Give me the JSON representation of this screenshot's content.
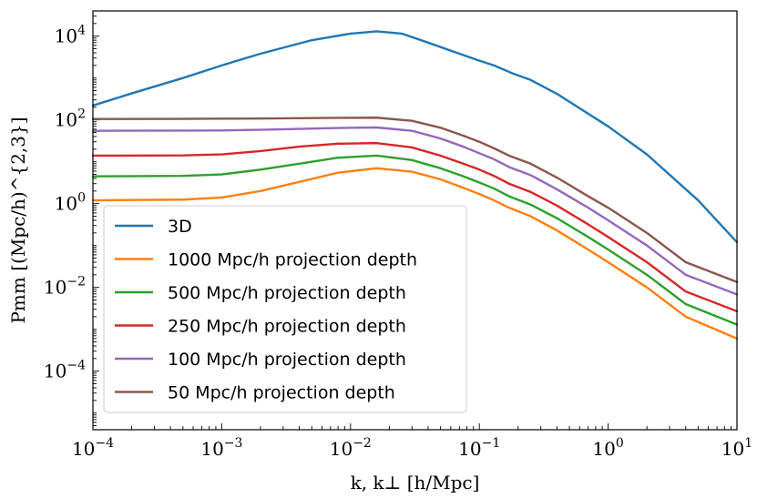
{
  "chart_data": {
    "type": "line",
    "xscale": "log",
    "yscale": "log",
    "xlim": [
      0.0001,
      10
    ],
    "ylim": [
      4e-06,
      40000
    ],
    "xlabel": "k, k⊥ [h/Mpc]",
    "ylabel": "Pmm [(Mpc/h)^{2,3}]",
    "legend_position": "lower-left",
    "x_ticks": [
      {
        "value": 0.0001,
        "base": "10",
        "exp": "−4"
      },
      {
        "value": 0.001,
        "base": "10",
        "exp": "−3"
      },
      {
        "value": 0.01,
        "base": "10",
        "exp": "−2"
      },
      {
        "value": 0.1,
        "base": "10",
        "exp": "−1"
      },
      {
        "value": 1,
        "base": "10",
        "exp": "0"
      },
      {
        "value": 10,
        "base": "10",
        "exp": "1"
      }
    ],
    "y_ticks": [
      {
        "value": 0.0001,
        "base": "10",
        "exp": "−4"
      },
      {
        "value": 0.01,
        "base": "10",
        "exp": "−2"
      },
      {
        "value": 1,
        "base": "10",
        "exp": "0"
      },
      {
        "value": 100,
        "base": "10",
        "exp": "2"
      },
      {
        "value": 10000,
        "base": "10",
        "exp": "4"
      }
    ],
    "series": [
      {
        "name": "3D",
        "color": "#1f77b4",
        "points": [
          [
            0.0001,
            220
          ],
          [
            0.0002,
            430
          ],
          [
            0.0005,
            1000
          ],
          [
            0.001,
            2000
          ],
          [
            0.002,
            3800
          ],
          [
            0.005,
            8000
          ],
          [
            0.01,
            11500
          ],
          [
            0.016,
            13000
          ],
          [
            0.025,
            11500
          ],
          [
            0.04,
            7000
          ],
          [
            0.06,
            4500
          ],
          [
            0.08,
            3300
          ],
          [
            0.1,
            2600
          ],
          [
            0.13,
            2000
          ],
          [
            0.18,
            1300
          ],
          [
            0.25,
            900
          ],
          [
            0.4,
            420
          ],
          [
            0.6,
            190
          ],
          [
            1,
            70
          ],
          [
            2,
            15
          ],
          [
            5,
            1.2
          ],
          [
            10,
            0.12
          ]
        ]
      },
      {
        "name": "1000 Mpc/h projection depth",
        "color": "#ff7f0e",
        "points": [
          [
            0.0001,
            1.2
          ],
          [
            0.0005,
            1.25
          ],
          [
            0.001,
            1.4
          ],
          [
            0.002,
            2
          ],
          [
            0.004,
            3.3
          ],
          [
            0.008,
            5.5
          ],
          [
            0.016,
            7
          ],
          [
            0.03,
            5.8
          ],
          [
            0.05,
            3.8
          ],
          [
            0.075,
            2.4
          ],
          [
            0.1,
            1.7
          ],
          [
            0.13,
            1.2
          ],
          [
            0.17,
            0.8
          ],
          [
            0.25,
            0.5
          ],
          [
            0.4,
            0.23
          ],
          [
            0.7,
            0.08
          ],
          [
            1,
            0.04
          ],
          [
            2,
            0.01
          ],
          [
            4,
            0.002
          ],
          [
            10,
            0.0006
          ]
        ]
      },
      {
        "name": "500 Mpc/h projection depth",
        "color": "#2ca02c",
        "points": [
          [
            0.0001,
            4.5
          ],
          [
            0.0005,
            4.6
          ],
          [
            0.001,
            5
          ],
          [
            0.002,
            6.5
          ],
          [
            0.004,
            9
          ],
          [
            0.008,
            12.5
          ],
          [
            0.016,
            14
          ],
          [
            0.03,
            11
          ],
          [
            0.05,
            7
          ],
          [
            0.075,
            4.5
          ],
          [
            0.1,
            3.2
          ],
          [
            0.13,
            2.3
          ],
          [
            0.17,
            1.5
          ],
          [
            0.25,
            0.95
          ],
          [
            0.4,
            0.45
          ],
          [
            0.7,
            0.16
          ],
          [
            1,
            0.08
          ],
          [
            2,
            0.02
          ],
          [
            4,
            0.004
          ],
          [
            10,
            0.0013
          ]
        ]
      },
      {
        "name": "250 Mpc/h projection depth",
        "color": "#d62728",
        "points": [
          [
            0.0001,
            14
          ],
          [
            0.0005,
            14.2
          ],
          [
            0.001,
            15
          ],
          [
            0.002,
            18
          ],
          [
            0.004,
            23
          ],
          [
            0.008,
            27
          ],
          [
            0.016,
            28
          ],
          [
            0.03,
            22
          ],
          [
            0.05,
            14
          ],
          [
            0.075,
            9
          ],
          [
            0.1,
            6.5
          ],
          [
            0.13,
            4.6
          ],
          [
            0.17,
            3
          ],
          [
            0.25,
            1.9
          ],
          [
            0.4,
            0.9
          ],
          [
            0.7,
            0.32
          ],
          [
            1,
            0.16
          ],
          [
            2,
            0.04
          ],
          [
            4,
            0.008
          ],
          [
            10,
            0.0027
          ]
        ]
      },
      {
        "name": "100 Mpc/h projection depth",
        "color": "#9467bd",
        "points": [
          [
            0.0001,
            55
          ],
          [
            0.0005,
            55.5
          ],
          [
            0.001,
            56
          ],
          [
            0.002,
            58
          ],
          [
            0.004,
            61
          ],
          [
            0.008,
            64
          ],
          [
            0.016,
            66
          ],
          [
            0.03,
            55
          ],
          [
            0.05,
            36
          ],
          [
            0.075,
            23
          ],
          [
            0.1,
            16
          ],
          [
            0.13,
            11.5
          ],
          [
            0.17,
            7.5
          ],
          [
            0.25,
            4.8
          ],
          [
            0.4,
            2.2
          ],
          [
            0.7,
            0.8
          ],
          [
            1,
            0.4
          ],
          [
            2,
            0.1
          ],
          [
            4,
            0.02
          ],
          [
            10,
            0.0068
          ]
        ]
      },
      {
        "name": "50 Mpc/h projection depth",
        "color": "#8c564b",
        "points": [
          [
            0.0001,
            105
          ],
          [
            0.0005,
            106
          ],
          [
            0.001,
            107
          ],
          [
            0.002,
            108
          ],
          [
            0.004,
            110
          ],
          [
            0.008,
            112
          ],
          [
            0.016,
            113
          ],
          [
            0.03,
            95
          ],
          [
            0.05,
            65
          ],
          [
            0.075,
            42
          ],
          [
            0.1,
            30
          ],
          [
            0.13,
            21
          ],
          [
            0.17,
            14
          ],
          [
            0.25,
            9
          ],
          [
            0.4,
            4.2
          ],
          [
            0.7,
            1.5
          ],
          [
            1,
            0.8
          ],
          [
            2,
            0.2
          ],
          [
            4,
            0.04
          ],
          [
            10,
            0.0135
          ]
        ]
      }
    ]
  }
}
